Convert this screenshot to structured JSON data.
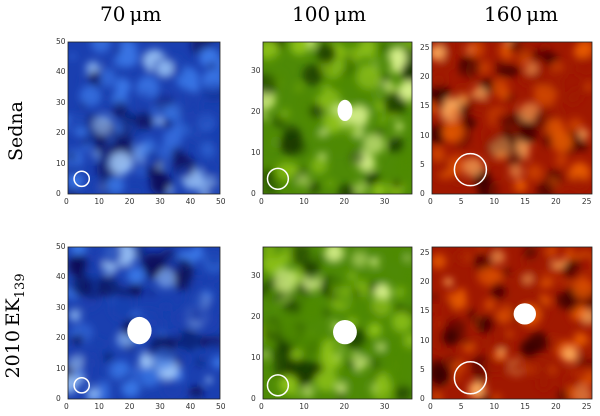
{
  "columns": [
    {
      "label": "70 μm"
    },
    {
      "label": "100 μm"
    },
    {
      "label": "160 μm"
    }
  ],
  "rows": [
    {
      "label": "Sedna"
    },
    {
      "label": "2010 EK",
      "label_sub": "139"
    }
  ],
  "colormaps": {
    "blue": [
      "#0a0f5a",
      "#1a3fb0",
      "#3a78e8",
      "#a8d2ff",
      "#ffffff"
    ],
    "green": [
      "#1a3a00",
      "#4e8a06",
      "#8ec216",
      "#d6f08a",
      "#ffffff"
    ],
    "red": [
      "#3a0000",
      "#a01800",
      "#e65a00",
      "#ffb060",
      "#ffffff"
    ]
  },
  "panels": [
    {
      "id": "sedna-70",
      "colormap": "blue",
      "xticks": [
        "0",
        "10",
        "20",
        "30",
        "40",
        "50"
      ],
      "yticks": [
        "0",
        "10",
        "20",
        "30",
        "40",
        "50"
      ],
      "max": 50
    },
    {
      "id": "sedna-100",
      "colormap": "green",
      "xticks": [
        "0",
        "10",
        "20",
        "30"
      ],
      "yticks": [
        "0",
        "10",
        "20",
        "30"
      ],
      "max": 37
    },
    {
      "id": "sedna-160",
      "colormap": "red",
      "xticks": [
        "0",
        "5",
        "10",
        "15",
        "20",
        "25"
      ],
      "yticks": [
        "0",
        "5",
        "10",
        "15",
        "20",
        "25"
      ],
      "max": 26
    },
    {
      "id": "ek139-70",
      "colormap": "blue",
      "xticks": [
        "0",
        "10",
        "20",
        "30",
        "40",
        "50"
      ],
      "yticks": [
        "0",
        "10",
        "20",
        "30",
        "40",
        "50"
      ],
      "max": 50
    },
    {
      "id": "ek139-100",
      "colormap": "green",
      "xticks": [
        "0",
        "10",
        "20",
        "30"
      ],
      "yticks": [
        "0",
        "10",
        "20",
        "30"
      ],
      "max": 37
    },
    {
      "id": "ek139-160",
      "colormap": "red",
      "xticks": [
        "0",
        "5",
        "10",
        "15",
        "20",
        "25"
      ],
      "yticks": [
        "0",
        "5",
        "10",
        "15",
        "20",
        "25"
      ],
      "max": 26
    }
  ]
}
